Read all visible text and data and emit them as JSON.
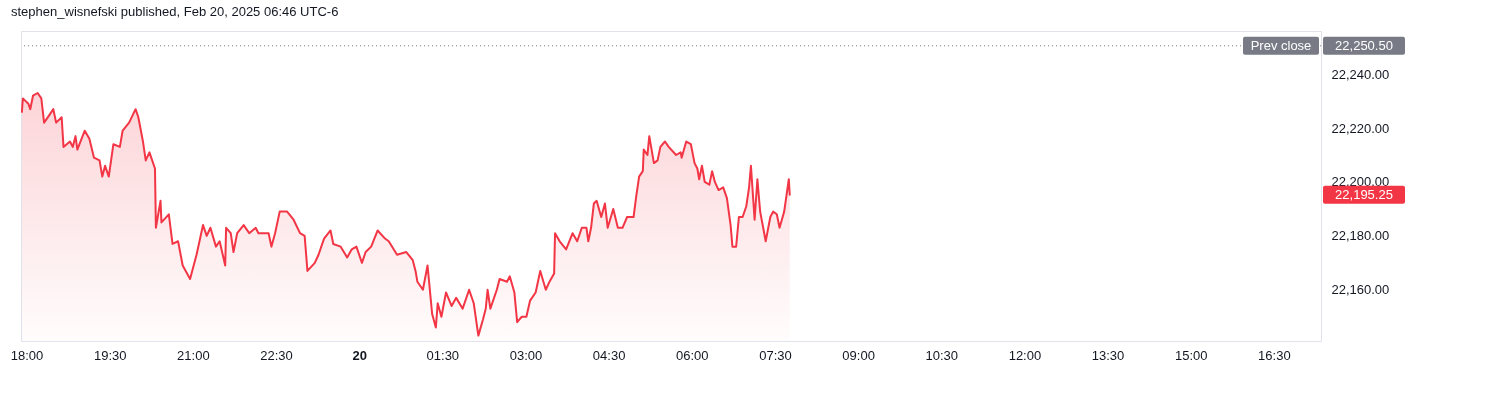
{
  "chart_data": {
    "type": "area",
    "title": "stephen_wisnefski published, Feb 20, 2025 06:46 UTC-6",
    "xlim": [
      "2025-02-19T17:54",
      "2025-02-20T17:21"
    ],
    "ylim": [
      22141,
      22256
    ],
    "xticks": [
      {
        "value": "2025-02-19T18:00",
        "label": "18:00"
      },
      {
        "value": "2025-02-19T19:30",
        "label": "19:30"
      },
      {
        "value": "2025-02-19T21:00",
        "label": "21:00"
      },
      {
        "value": "2025-02-19T22:30",
        "label": "22:30"
      },
      {
        "value": "2025-02-20T00:00",
        "label": "20"
      },
      {
        "value": "2025-02-20T01:30",
        "label": "01:30"
      },
      {
        "value": "2025-02-20T03:00",
        "label": "03:00"
      },
      {
        "value": "2025-02-20T04:30",
        "label": "04:30"
      },
      {
        "value": "2025-02-20T06:00",
        "label": "06:00"
      },
      {
        "value": "2025-02-20T07:30",
        "label": "07:30"
      },
      {
        "value": "2025-02-20T09:00",
        "label": "09:00"
      },
      {
        "value": "2025-02-20T10:30",
        "label": "10:30"
      },
      {
        "value": "2025-02-20T12:00",
        "label": "12:00"
      },
      {
        "value": "2025-02-20T13:30",
        "label": "13:30"
      },
      {
        "value": "2025-02-20T15:00",
        "label": "15:00"
      },
      {
        "value": "2025-02-20T16:30",
        "label": "16:30"
      }
    ],
    "yticks": [
      {
        "value": 22160,
        "label": "22,160.00"
      },
      {
        "value": 22180,
        "label": "22,180.00"
      },
      {
        "value": 22200,
        "label": "22,200.00"
      },
      {
        "value": 22220,
        "label": "22,220.00"
      },
      {
        "value": 22240,
        "label": "22,240.00"
      }
    ],
    "grid": false,
    "annotations": [
      "22,250.50",
      "22,195.25"
    ],
    "ref_lines": [
      {
        "axis": "y",
        "value": 22250.5,
        "label": "Prev close",
        "color": "#787b86",
        "line_style": "dotted"
      }
    ],
    "series": [
      {
        "color": "#f23645",
        "x": [
          "2025-02-19T17:55",
          "2025-02-19T17:56",
          "2025-02-19T18:02",
          "2025-02-19T18:04",
          "2025-02-19T18:07",
          "2025-02-19T18:12",
          "2025-02-19T18:16",
          "2025-02-19T18:19",
          "2025-02-19T18:25",
          "2025-02-19T18:29",
          "2025-02-19T18:32",
          "2025-02-19T18:38",
          "2025-02-19T18:40",
          "2025-02-19T18:47",
          "2025-02-19T18:50",
          "2025-02-19T18:53",
          "2025-02-19T18:55",
          "2025-02-19T19:03",
          "2025-02-19T19:08",
          "2025-02-19T19:13",
          "2025-02-19T19:19",
          "2025-02-19T19:22",
          "2025-02-19T19:25",
          "2025-02-19T19:29",
          "2025-02-19T19:34",
          "2025-02-19T19:41",
          "2025-02-19T19:44",
          "2025-02-19T19:51",
          "2025-02-19T19:58",
          "2025-02-19T20:01",
          "2025-02-19T20:06",
          "2025-02-19T20:09",
          "2025-02-19T20:13",
          "2025-02-19T20:19",
          "2025-02-19T20:20",
          "2025-02-19T20:25",
          "2025-02-19T20:26",
          "2025-02-19T20:34",
          "2025-02-19T20:38",
          "2025-02-19T20:44",
          "2025-02-19T20:49",
          "2025-02-19T20:57",
          "2025-02-19T21:04",
          "2025-02-19T21:11",
          "2025-02-19T21:15",
          "2025-02-19T21:19",
          "2025-02-19T21:25",
          "2025-02-19T21:29",
          "2025-02-19T21:35",
          "2025-02-19T21:36",
          "2025-02-19T21:41",
          "2025-02-19T21:44",
          "2025-02-19T21:48",
          "2025-02-19T21:55",
          "2025-02-19T22:01",
          "2025-02-19T22:08",
          "2025-02-19T22:11",
          "2025-02-19T22:22",
          "2025-02-19T22:25",
          "2025-02-19T22:29",
          "2025-02-19T22:34",
          "2025-02-19T22:42",
          "2025-02-19T22:49",
          "2025-02-19T22:56",
          "2025-02-19T23:01",
          "2025-02-19T23:04",
          "2025-02-19T23:12",
          "2025-02-19T23:16",
          "2025-02-19T23:22",
          "2025-02-19T23:29",
          "2025-02-19T23:32",
          "2025-02-19T23:40",
          "2025-02-19T23:47",
          "2025-02-19T23:52",
          "2025-02-19T23:57",
          "2025-02-20T00:03",
          "2025-02-20T00:07",
          "2025-02-20T00:13",
          "2025-02-20T00:20",
          "2025-02-20T00:28",
          "2025-02-20T00:32",
          "2025-02-20T00:41",
          "2025-02-20T00:51",
          "2025-02-20T00:58",
          "2025-02-20T01:01",
          "2025-02-20T01:03",
          "2025-02-20T01:09",
          "2025-02-20T01:14",
          "2025-02-20T01:19",
          "2025-02-20T01:23",
          "2025-02-20T01:25",
          "2025-02-20T01:29",
          "2025-02-20T01:34",
          "2025-02-20T01:40",
          "2025-02-20T01:45",
          "2025-02-20T01:52",
          "2025-02-20T01:59",
          "2025-02-20T02:04",
          "2025-02-20T02:09",
          "2025-02-20T02:14",
          "2025-02-20T02:17",
          "2025-02-20T02:19",
          "2025-02-20T02:22",
          "2025-02-20T02:29",
          "2025-02-20T02:32",
          "2025-02-20T02:40",
          "2025-02-20T02:43",
          "2025-02-20T02:48",
          "2025-02-20T02:51",
          "2025-02-20T02:56",
          "2025-02-20T03:01",
          "2025-02-20T03:05",
          "2025-02-20T03:11",
          "2025-02-20T03:16",
          "2025-02-20T03:22",
          "2025-02-20T03:26",
          "2025-02-20T03:31",
          "2025-02-20T03:32",
          "2025-02-20T03:37",
          "2025-02-20T03:44",
          "2025-02-20T03:51",
          "2025-02-20T03:56",
          "2025-02-20T04:01",
          "2025-02-20T04:06",
          "2025-02-20T04:08",
          "2025-02-20T04:11",
          "2025-02-20T04:14",
          "2025-02-20T04:17",
          "2025-02-20T04:22",
          "2025-02-20T04:26",
          "2025-02-20T04:29",
          "2025-02-20T04:35",
          "2025-02-20T04:40",
          "2025-02-20T04:45",
          "2025-02-20T04:50",
          "2025-02-20T04:57",
          "2025-02-20T05:00",
          "2025-02-20T05:03",
          "2025-02-20T05:07",
          "2025-02-20T05:08",
          "2025-02-20T05:12",
          "2025-02-20T05:14",
          "2025-02-20T05:19",
          "2025-02-20T05:23",
          "2025-02-20T05:26",
          "2025-02-20T05:31",
          "2025-02-20T05:35",
          "2025-02-20T05:43",
          "2025-02-20T05:48",
          "2025-02-20T05:49",
          "2025-02-20T05:54",
          "2025-02-20T05:59",
          "2025-02-20T06:03",
          "2025-02-20T06:06",
          "2025-02-20T06:08",
          "2025-02-20T06:11",
          "2025-02-20T06:14",
          "2025-02-20T06:19",
          "2025-02-20T06:22",
          "2025-02-20T06:25",
          "2025-02-20T06:29",
          "2025-02-20T06:34",
          "2025-02-20T06:38",
          "2025-02-20T06:42",
          "2025-02-20T06:44",
          "2025-02-20T06:48",
          "2025-02-20T06:51",
          "2025-02-20T06:55",
          "2025-02-20T06:59",
          "2025-02-20T07:02",
          "2025-02-20T07:04",
          "2025-02-20T07:08",
          "2025-02-20T07:11",
          "2025-02-20T07:14",
          "2025-02-20T07:20",
          "2025-02-20T07:25",
          "2025-02-20T07:28",
          "2025-02-20T07:32",
          "2025-02-20T07:35",
          "2025-02-20T07:40",
          "2025-02-20T07:45",
          "2025-02-20T07:46"
        ],
        "values": [
          22226,
          22231,
          22229,
          22227,
          22232,
          22233,
          22231,
          22222,
          22225,
          22227,
          22222,
          22224,
          22213,
          22215,
          22213,
          22217,
          22212,
          22219,
          22216,
          22209,
          22208,
          22202,
          22206,
          22202,
          22214,
          22213,
          22219,
          22222,
          22227,
          22224,
          22215,
          22208,
          22211,
          22205,
          22183,
          22193,
          22185,
          22188,
          22177,
          22178,
          22169,
          22164,
          22173,
          22184,
          22180,
          22183,
          22176,
          22178,
          22169,
          22183,
          22181,
          22174,
          22181,
          22184,
          22181,
          22183,
          22181,
          22181,
          22176,
          22181,
          22189,
          22189,
          22186,
          22181,
          22180,
          22167,
          22170,
          22173,
          22179,
          22182,
          22177,
          22176,
          22172,
          22175,
          22176,
          22170,
          22174,
          22176,
          22182,
          22179,
          22178,
          22173,
          22174,
          22171,
          22167,
          22163,
          22160,
          22169,
          22151,
          22146,
          22155,
          22150,
          22159,
          22154,
          22157,
          22153,
          22160,
          22155,
          22143,
          22149,
          22153,
          22160,
          22153,
          22160,
          22164,
          22163,
          22165,
          22159,
          22148,
          22150,
          22150,
          22156,
          22159,
          22167,
          22160,
          22163,
          22166,
          22181,
          22178,
          22175,
          22181,
          22178,
          22183,
          22183,
          22178,
          22183,
          22192,
          22193,
          22187,
          22192,
          22183,
          22190,
          22183,
          22183,
          22187,
          22187,
          22195,
          22202,
          22204,
          22212,
          22210,
          22217,
          22207,
          22208,
          22213,
          22215,
          22213,
          22210,
          22211,
          22209,
          22215,
          22214,
          22207,
          22205,
          22201,
          22206,
          22200,
          22199,
          22204,
          22200,
          22197,
          22198,
          22194,
          22184,
          22176,
          22176,
          22187,
          22187,
          22191,
          22198,
          22206,
          22186,
          22201,
          22189,
          22178,
          22187,
          22189,
          22188,
          22183,
          22189,
          22201,
          22195.25
        ],
        "value_labels": [
          null,
          null,
          null,
          null,
          null,
          null,
          null,
          null,
          null,
          null,
          null,
          null,
          null,
          null,
          null,
          null,
          null,
          null,
          null,
          null,
          null,
          null,
          null,
          null,
          null,
          null,
          null,
          null,
          null,
          null,
          null,
          null,
          null,
          null,
          null,
          null,
          null,
          null,
          null,
          null,
          null,
          null,
          null,
          null,
          null,
          null,
          null,
          null,
          null,
          null,
          null,
          null,
          null,
          null,
          null,
          null,
          null,
          null,
          null,
          null,
          null,
          null,
          null,
          null,
          null,
          null,
          null,
          null,
          null,
          null,
          null,
          null,
          null,
          null,
          null,
          null,
          null,
          null,
          null,
          null,
          null,
          null,
          null,
          null,
          null,
          null,
          null,
          null,
          null,
          null,
          null,
          null,
          null,
          null,
          null,
          null,
          null,
          null,
          null,
          null,
          null,
          null,
          null,
          null,
          null,
          null,
          null,
          null,
          null,
          null,
          null,
          null,
          null,
          null,
          null,
          null,
          null,
          null,
          null,
          null,
          null,
          null,
          null,
          null,
          null,
          null,
          null,
          null,
          null,
          null,
          null,
          null,
          null,
          null,
          null,
          null,
          null,
          null,
          null,
          null,
          null,
          null,
          null,
          null,
          null,
          null,
          null,
          null,
          null,
          null,
          null,
          null,
          null,
          null,
          null,
          null,
          null,
          null,
          null,
          null,
          null,
          null,
          null,
          null,
          null,
          null,
          null,
          null,
          null,
          null,
          null,
          null,
          null,
          null,
          null,
          null,
          null,
          null,
          null,
          null,
          null,
          null
        ]
      }
    ]
  }
}
